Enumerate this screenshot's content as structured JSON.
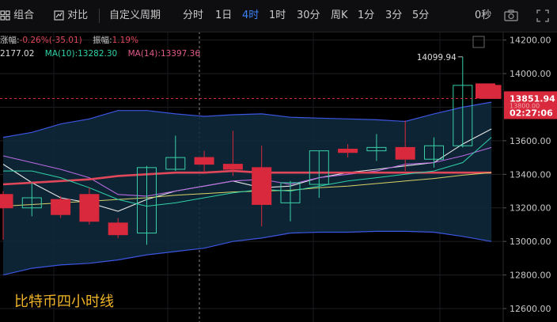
{
  "toolbar": {
    "items": [
      {
        "label": "组合",
        "name": "combo-button",
        "icon": "grid-icon"
      },
      {
        "label": "对比",
        "name": "compare-button",
        "icon": "compare-icon"
      }
    ],
    "custom_period": "自定义周期",
    "periods": [
      "分时",
      "1日",
      "4时",
      "1时",
      "30分",
      "周K",
      "1分",
      "3分",
      "5分"
    ],
    "active_period": "4时",
    "countdown": "0秒",
    "icons": [
      "camera-icon",
      "fullscreen-icon"
    ]
  },
  "indicators": {
    "change_label": "涨幅:",
    "change_value": "-0.26%(-35.01)",
    "amplitude_label": "振幅:",
    "amplitude_value": "1.19%",
    "ma5": "2177.02",
    "ma10_label": "MA(10):",
    "ma10_value": "13282.30",
    "ma14_label": "MA(14):",
    "ma14_value": "13397.36"
  },
  "price_tags": {
    "current_price": "13851.94",
    "countdown": "02:27:06",
    "high_annotation": "14099.94",
    "hidden_tag": "13800.00"
  },
  "watermark": "比特币四小时线",
  "colors": {
    "up": "#39d0a8",
    "down": "#d8293d",
    "band_fill": "#0f2a3d",
    "band_line": "#3b56e0",
    "ma5": "#e6e6e6",
    "ma10": "#2fd2a8",
    "ma14": "#e0485a",
    "ma_yellow": "#d8d36a",
    "ma_purple": "#b86be0",
    "accent": "#3b82f6",
    "label_bg": "#d8293d"
  },
  "chart_data": {
    "type": "candlestick",
    "y_ticks": [
      "14200.00",
      "14000.00",
      "13600.00",
      "13400.00",
      "13200.00",
      "13000.00",
      "12800.00",
      "12600.00"
    ],
    "ylim": [
      12520,
      14250
    ],
    "candles": [
      {
        "o": 13280,
        "h": 13300,
        "l": 13010,
        "c": 13200
      },
      {
        "o": 13200,
        "h": 13350,
        "l": 13150,
        "c": 13260
      },
      {
        "o": 13250,
        "h": 13270,
        "l": 13140,
        "c": 13160
      },
      {
        "o": 13280,
        "h": 13320,
        "l": 13100,
        "c": 13120
      },
      {
        "o": 13110,
        "h": 13140,
        "l": 13020,
        "c": 13040
      },
      {
        "o": 13050,
        "h": 13450,
        "l": 12980,
        "c": 13440
      },
      {
        "o": 13430,
        "h": 13630,
        "l": 13420,
        "c": 13500
      },
      {
        "o": 13500,
        "h": 13540,
        "l": 13410,
        "c": 13460
      },
      {
        "o": 13460,
        "h": 13660,
        "l": 13390,
        "c": 13430
      },
      {
        "o": 13440,
        "h": 13570,
        "l": 13090,
        "c": 13220
      },
      {
        "o": 13230,
        "h": 13360,
        "l": 13120,
        "c": 13350
      },
      {
        "o": 13340,
        "h": 13540,
        "l": 13260,
        "c": 13540
      },
      {
        "o": 13550,
        "h": 13580,
        "l": 13500,
        "c": 13530
      },
      {
        "o": 13540,
        "h": 13640,
        "l": 13480,
        "c": 13560
      },
      {
        "o": 13560,
        "h": 13720,
        "l": 13420,
        "c": 13490
      },
      {
        "o": 13490,
        "h": 13620,
        "l": 13440,
        "c": 13570
      },
      {
        "o": 13570,
        "h": 14099.94,
        "l": 13560,
        "c": 13930
      },
      {
        "o": 13930,
        "h": 13930,
        "l": 13850,
        "c": 13851.94
      }
    ],
    "series": [
      {
        "values": [
          13620,
          13650,
          13700,
          13730,
          13780,
          13780,
          13760,
          13745,
          13755,
          13760,
          13740,
          13735,
          13730,
          13725,
          13715,
          13760,
          13800,
          13830
        ]
      },
      {
        "values": [
          12800,
          12840,
          12860,
          12870,
          12890,
          12920,
          12940,
          12960,
          13000,
          13020,
          13050,
          13055,
          13055,
          13060,
          13060,
          13055,
          13030,
          13000
        ]
      },
      {
        "values": [
          13460,
          13350,
          13260,
          13230,
          13180,
          13250,
          13300,
          13330,
          13360,
          13320,
          13330,
          13380,
          13410,
          13430,
          13450,
          13470,
          13580,
          13670
        ]
      },
      {
        "values": [
          13510,
          13470,
          13430,
          13380,
          13280,
          13270,
          13300,
          13330,
          13360,
          13370,
          13340,
          13380,
          13400,
          13420,
          13460,
          13470,
          13510,
          13560
        ]
      },
      {
        "values": [
          13340,
          13350,
          13360,
          13370,
          13390,
          13400,
          13410,
          13410,
          13420,
          13410,
          13410,
          13410,
          13410,
          13410,
          13410,
          13410,
          13410,
          13410
        ]
      },
      {
        "values": [
          13210,
          13220,
          13230,
          13240,
          13250,
          13260,
          13275,
          13285,
          13295,
          13300,
          13305,
          13320,
          13330,
          13345,
          13360,
          13375,
          13395,
          13410
        ]
      },
      {
        "values": [
          13420,
          13420,
          13380,
          13320,
          13250,
          13210,
          13230,
          13260,
          13290,
          13310,
          13300,
          13330,
          13360,
          13380,
          13400,
          13420,
          13470,
          13620
        ]
      }
    ]
  }
}
